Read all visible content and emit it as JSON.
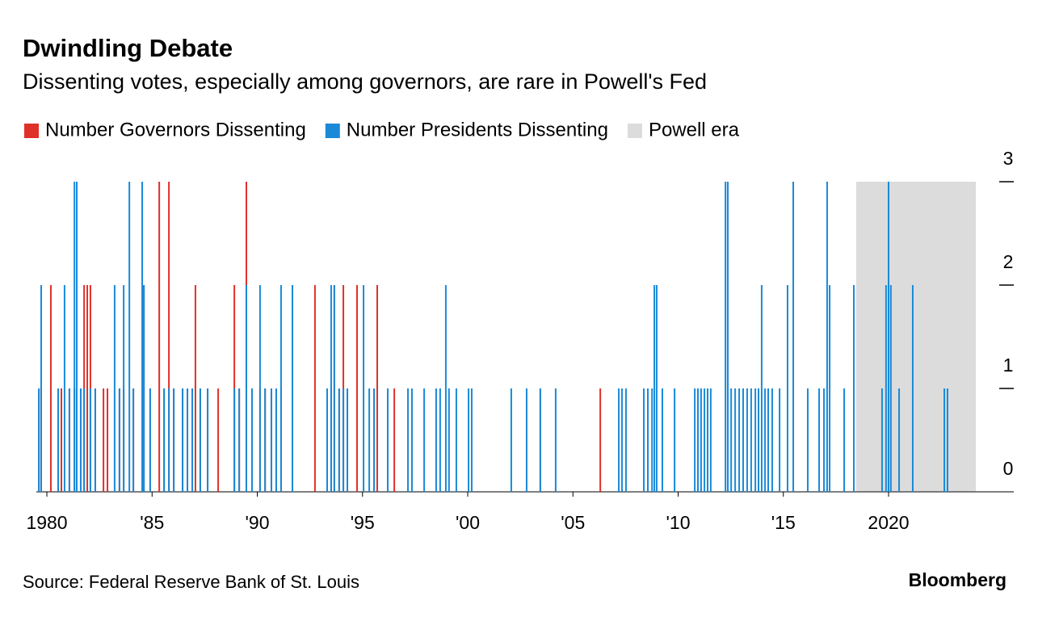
{
  "chart_data": {
    "type": "spike",
    "title": "Dwindling Debate",
    "subtitle": "Dissenting votes, especially among governors, are rare in Powell's Fed",
    "source": "Source: Federal Reserve Bank of St. Louis",
    "brand": "Bloomberg",
    "x": [
      1979.62,
      1979.73,
      1980.19,
      1980.54,
      1980.69,
      1980.84,
      1981.07,
      1981.31,
      1981.42,
      1981.61,
      1981.77,
      1981.92,
      1982.07,
      1982.3,
      1982.69,
      1982.88,
      1983.22,
      1983.45,
      1983.65,
      1983.92,
      1984.11,
      1984.53,
      1984.61,
      1984.91,
      1985.34,
      1985.57,
      1985.8,
      1986.03,
      1986.45,
      1986.68,
      1986.91,
      1987.06,
      1987.29,
      1987.64,
      1988.14,
      1988.91,
      1989.14,
      1989.48,
      1989.75,
      1990.13,
      1990.37,
      1990.67,
      1990.9,
      1991.13,
      1991.67,
      1992.74,
      1993.32,
      1993.51,
      1993.66,
      1993.89,
      1994.09,
      1994.28,
      1994.74,
      1995.05,
      1995.32,
      1995.55,
      1995.7,
      1996.2,
      1996.51,
      1997.16,
      1997.35,
      1997.93,
      1998.5,
      1998.69,
      1998.96,
      1999.11,
      1999.46,
      2000.04,
      2000.19,
      2002.07,
      2002.8,
      2003.45,
      2004.18,
      2006.3,
      2007.18,
      2007.33,
      2007.52,
      2008.37,
      2008.56,
      2008.76,
      2008.87,
      2008.98,
      2009.25,
      2009.83,
      2010.79,
      2010.94,
      2011.09,
      2011.25,
      2011.4,
      2011.55,
      2012.25,
      2012.36,
      2012.52,
      2012.71,
      2012.9,
      2013.09,
      2013.28,
      2013.47,
      2013.67,
      2013.82,
      2013.97,
      2014.13,
      2014.28,
      2014.47,
      2014.82,
      2015.2,
      2015.47,
      2016.16,
      2016.7,
      2016.93,
      2017.08,
      2017.2,
      2017.89,
      2018.35,
      2019.69,
      2019.88,
      2020.0,
      2020.11,
      2020.5,
      2021.15,
      2022.65,
      2022.8
    ],
    "series": [
      {
        "name": "Number Governors Dissenting",
        "color": "#e0302a",
        "values": [
          1,
          2,
          2,
          1,
          1,
          0,
          1,
          1,
          0,
          1,
          2,
          2,
          2,
          1,
          1,
          1,
          0,
          1,
          1,
          0,
          1,
          0,
          2,
          1,
          3,
          1,
          3,
          1,
          1,
          1,
          1,
          2,
          1,
          1,
          1,
          2,
          1,
          3,
          1,
          1,
          1,
          1,
          1,
          1,
          2,
          2,
          1,
          1,
          2,
          1,
          2,
          1,
          2,
          0,
          0,
          1,
          2,
          0,
          1,
          0,
          0,
          0,
          0,
          0,
          0,
          0,
          0,
          0,
          0,
          0,
          0,
          1,
          0,
          1,
          0,
          0,
          0,
          0,
          0,
          0,
          0,
          0,
          0,
          0,
          0,
          0,
          0,
          0,
          0,
          0,
          0,
          0,
          0,
          0,
          0,
          0,
          0,
          0,
          0,
          0,
          0,
          0,
          0,
          0,
          0,
          0,
          0,
          0,
          0,
          0,
          0,
          0,
          0,
          0,
          0,
          0,
          0,
          0,
          0,
          0,
          0,
          0
        ]
      },
      {
        "name": "Number Presidents Dissenting",
        "color": "#1a8ad8",
        "values": [
          1,
          2,
          0,
          1,
          0,
          2,
          1,
          3,
          3,
          1,
          1,
          0,
          1,
          1,
          0,
          0,
          2,
          1,
          2,
          3,
          1,
          3,
          2,
          1,
          0,
          1,
          1,
          1,
          1,
          1,
          1,
          0,
          1,
          1,
          0,
          1,
          1,
          2,
          1,
          2,
          1,
          1,
          1,
          2,
          2,
          0,
          1,
          2,
          2,
          1,
          1,
          1,
          0,
          2,
          1,
          1,
          0,
          1,
          0,
          1,
          1,
          1,
          1,
          1,
          2,
          1,
          1,
          1,
          1,
          1,
          1,
          1,
          1,
          0,
          1,
          1,
          1,
          1,
          1,
          1,
          2,
          2,
          1,
          1,
          1,
          1,
          1,
          1,
          1,
          1,
          3,
          3,
          1,
          1,
          1,
          1,
          1,
          1,
          1,
          1,
          2,
          1,
          1,
          1,
          1,
          2,
          3,
          1,
          1,
          1,
          3,
          2,
          1,
          2,
          1,
          2,
          3,
          2,
          1,
          2,
          1,
          1
        ]
      }
    ],
    "shade": {
      "name": "Powell era",
      "start": 2018.46,
      "end": 2024.15,
      "color": "#dcdcdc"
    },
    "xlim": [
      1979.5,
      2025.95
    ],
    "xticks": [
      1980,
      {
        "value": 1985,
        "label": "'85"
      },
      {
        "value": 1990,
        "label": "'90"
      },
      {
        "value": 1995,
        "label": "'95"
      },
      {
        "value": 2000,
        "label": "'00"
      },
      {
        "value": 2005,
        "label": "'05"
      },
      {
        "value": 2010,
        "label": "'10"
      },
      {
        "value": 2015,
        "label": "'15"
      },
      2020
    ],
    "ylim": [
      0,
      3
    ],
    "yticks": [
      0,
      1,
      2,
      3
    ]
  }
}
